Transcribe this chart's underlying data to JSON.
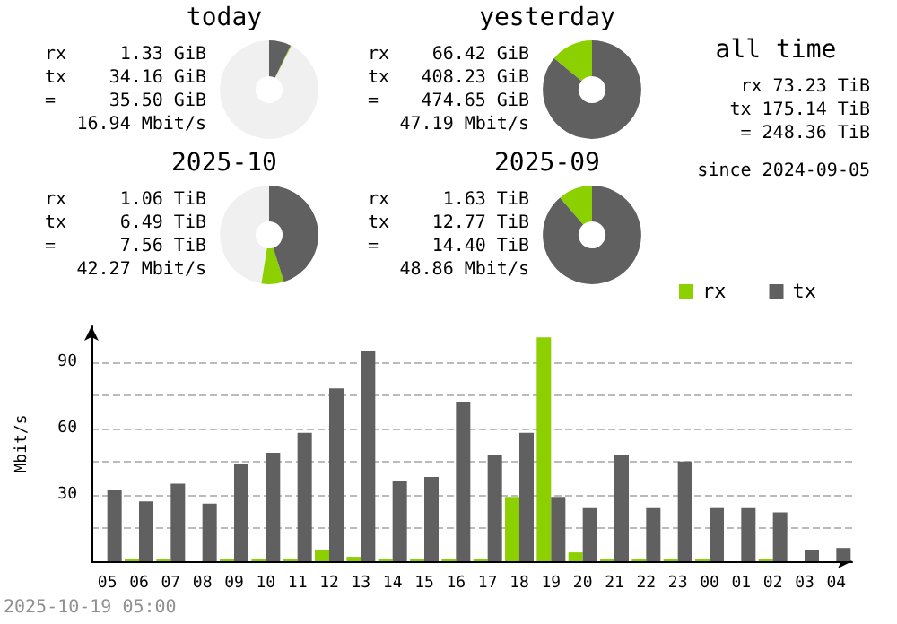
{
  "chart_data": [
    {
      "type": "donut",
      "title": "today",
      "categories": [
        null,
        null,
        null
      ],
      "values": [
        92.5,
        0.3,
        7.2
      ],
      "colors": [
        "#f0f0f0",
        "#8cd000",
        "#606060"
      ],
      "annotations": [
        "rx 1.33 GiB",
        "tx 34.16 GiB",
        "= 35.50 GiB",
        "16.94 Mbit/s"
      ]
    },
    {
      "type": "donut",
      "title": "yesterday",
      "categories": [
        null,
        null
      ],
      "values": [
        14,
        86
      ],
      "colors": [
        "#8cd000",
        "#606060"
      ],
      "annotations": [
        "rx 66.42 GiB",
        "tx 408.23 GiB",
        "= 474.65 GiB",
        "47.19 Mbit/s"
      ]
    },
    {
      "type": "other",
      "title": "all time",
      "annotations": [
        "rx 73.23 TiB",
        "tx 175.14 TiB",
        "= 248.36 TiB",
        "since 2024-09-05"
      ]
    },
    {
      "type": "donut",
      "title": "2025-10",
      "categories": [
        null,
        null,
        null
      ],
      "values": [
        47.5,
        7.4,
        45.1
      ],
      "colors": [
        "#f0f0f0",
        "#8cd000",
        "#606060"
      ],
      "annotations": [
        "rx 1.06 TiB",
        "tx 6.49 TiB",
        "= 7.56 TiB",
        "42.27 Mbit/s"
      ]
    },
    {
      "type": "donut",
      "title": "2025-09",
      "categories": [
        null,
        null
      ],
      "values": [
        11.3,
        88.7
      ],
      "colors": [
        "#8cd000",
        "#606060"
      ],
      "annotations": [
        "rx 1.63 TiB",
        "tx 12.77 TiB",
        "= 14.40 TiB",
        "48.86 Mbit/s"
      ]
    },
    {
      "type": "bar",
      "ylabel": "Mbit/s",
      "categories": [
        "05",
        "06",
        "07",
        "08",
        "09",
        "10",
        "11",
        "12",
        "13",
        "14",
        "15",
        "16",
        "17",
        "18",
        "19",
        "20",
        "21",
        "22",
        "23",
        "00",
        "01",
        "02",
        "03",
        "04"
      ],
      "series": [
        {
          "name": "rx",
          "color": "#8cd000",
          "values": [
            0,
            1,
            1,
            0,
            1,
            1,
            1,
            5,
            2,
            1,
            1,
            1,
            1,
            29,
            101,
            4,
            1,
            1,
            1,
            1,
            0,
            1,
            0,
            0
          ]
        },
        {
          "name": "tx",
          "color": "#606060",
          "values": [
            32,
            27,
            35,
            26,
            44,
            49,
            58,
            78,
            95,
            36,
            38,
            72,
            48,
            58,
            29,
            24,
            48,
            24,
            45,
            24,
            24,
            22,
            5,
            6
          ]
        }
      ],
      "ylim": [
        0,
        106
      ],
      "yticks": [
        {
          "value": 15,
          "label": null
        },
        30,
        {
          "value": 45,
          "label": null
        },
        60,
        {
          "value": 75,
          "label": null
        },
        90
      ],
      "grid": "y",
      "legend": "top right",
      "annotations": [
        "2025-10-19 05:00"
      ]
    }
  ]
}
